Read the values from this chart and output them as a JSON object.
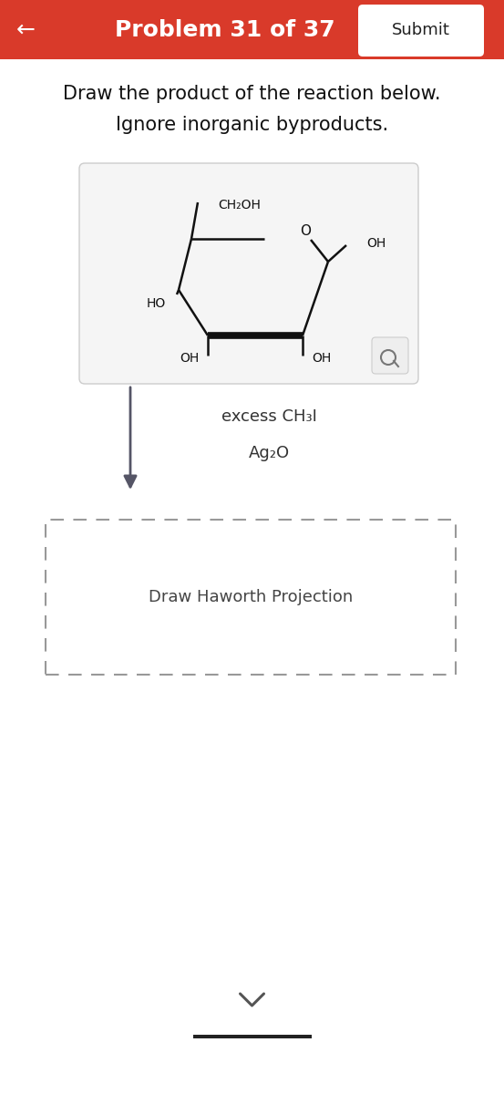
{
  "bg_color": "#ffffff",
  "header_color": "#d93a2a",
  "header_text": "Problem 31 of 37",
  "header_text_color": "#ffffff",
  "header_fontsize": 18,
  "submit_text": "Submit",
  "submit_bg": "#ffffff",
  "submit_text_color": "#222222",
  "back_arrow": "←",
  "title_line1": "Draw the product of the reaction below.",
  "title_line2": "Ignore inorganic byproducts.",
  "title_fontsize": 15,
  "title_color": "#111111",
  "reagent_line1": "excess CH₃I",
  "reagent_line2": "Ag₂O",
  "reagent_fontsize": 13,
  "reagent_color": "#333333",
  "haworth_label": "Draw Haworth Projection",
  "haworth_fontsize": 13,
  "haworth_text_color": "#444444",
  "dashed_box_color": "#999999",
  "chevron_color": "#555555",
  "arrow_color": "#555566",
  "molecule_box_bg": "#f5f5f5",
  "molecule_box_edge": "#cccccc",
  "ring_color": "#111111",
  "ring_lw": 1.8,
  "ring_thick_lw": 5.5
}
